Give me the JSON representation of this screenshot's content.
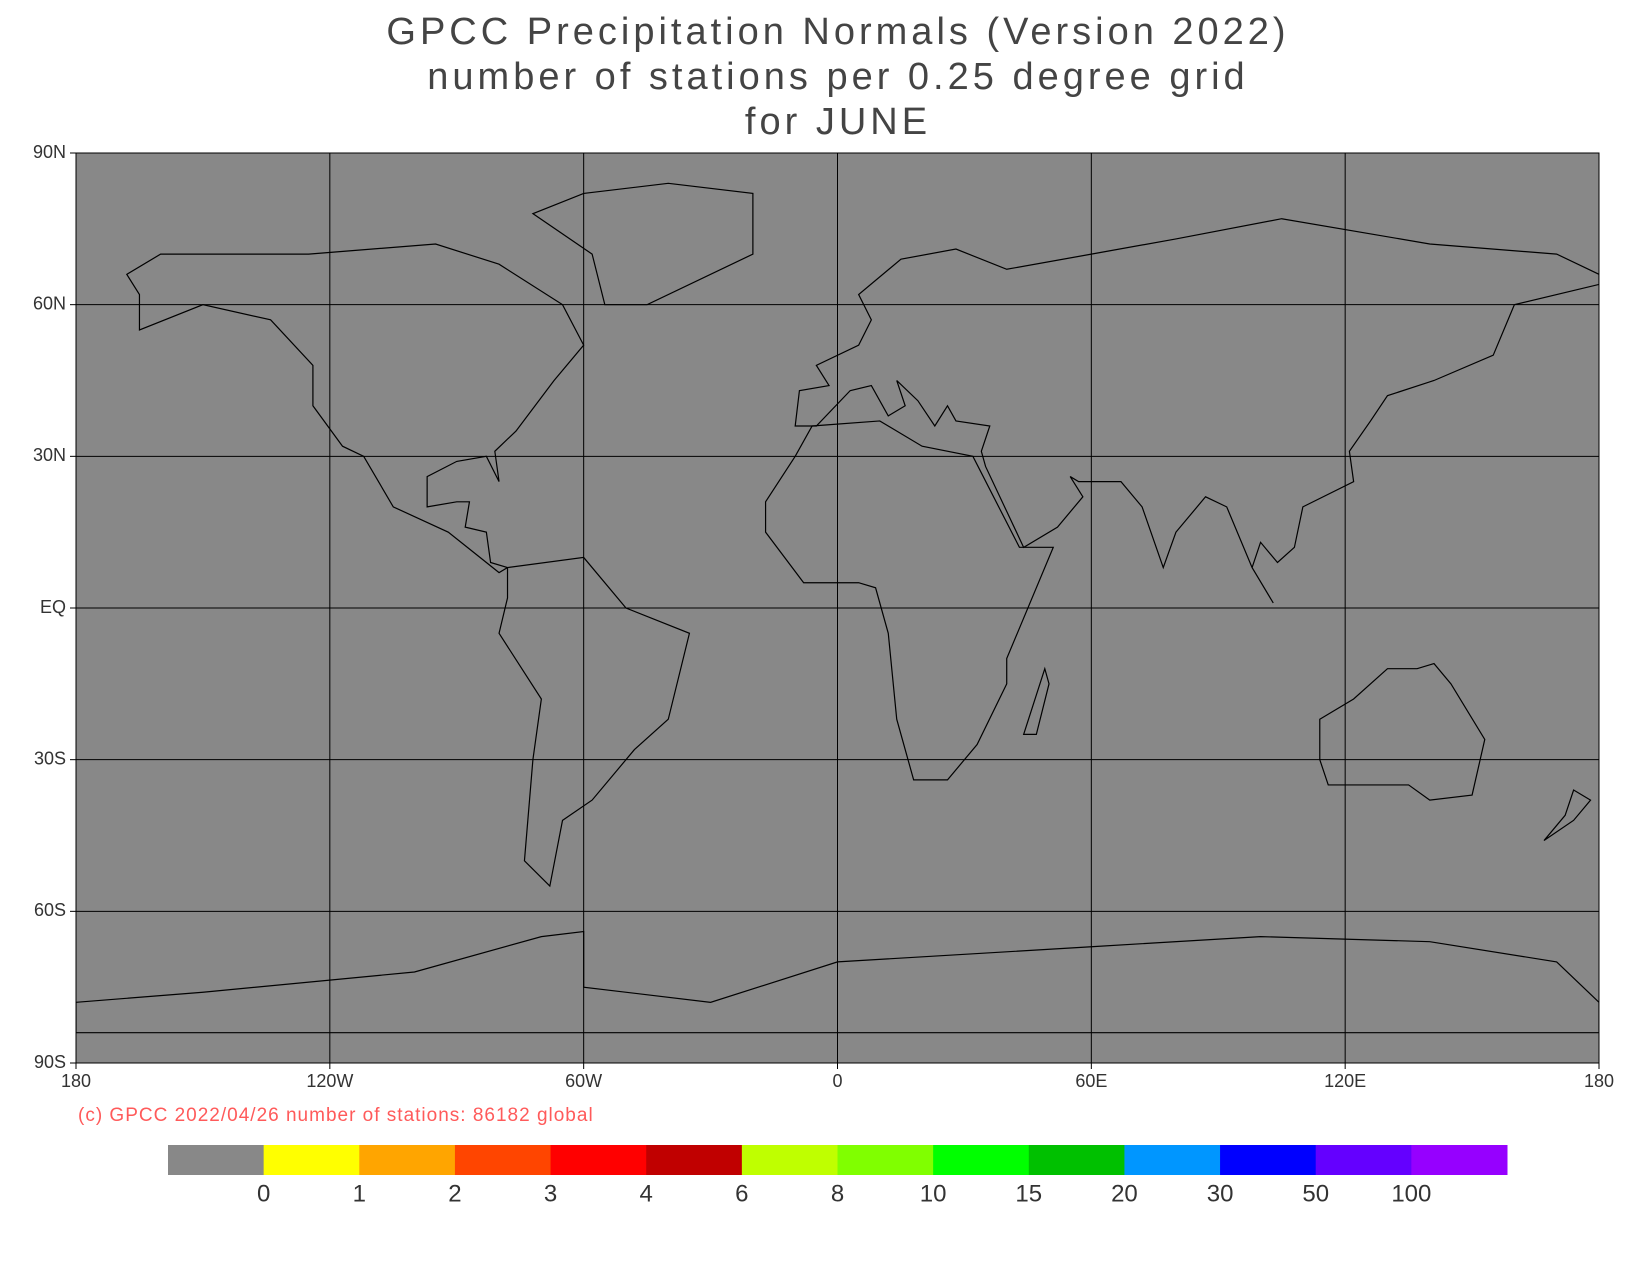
{
  "header": {
    "title_lines": [
      "GPCC Precipitation Normals (Version 2022)",
      "number of stations per 0.25 degree grid",
      "for JUNE"
    ]
  },
  "map": {
    "lon_ticks": [
      {
        "value": -180,
        "label": "180"
      },
      {
        "value": -120,
        "label": "120W"
      },
      {
        "value": -60,
        "label": "60W"
      },
      {
        "value": 0,
        "label": "0"
      },
      {
        "value": 60,
        "label": "60E"
      },
      {
        "value": 120,
        "label": "120E"
      },
      {
        "value": 180,
        "label": "180"
      }
    ],
    "lat_ticks": [
      {
        "value": 90,
        "label": "90N"
      },
      {
        "value": 60,
        "label": "60N"
      },
      {
        "value": 30,
        "label": "30N"
      },
      {
        "value": 0,
        "label": "EQ"
      },
      {
        "value": -30,
        "label": "30S"
      },
      {
        "value": -60,
        "label": "60S"
      },
      {
        "value": -90,
        "label": "90S"
      }
    ],
    "background": "#888888"
  },
  "footer": {
    "credit": "(c) GPCC 2022/04/26 number of stations: 86182 global"
  },
  "colorbar": {
    "colors": [
      "#888888",
      "#ffff00",
      "#ffa500",
      "#ff4500",
      "#ff0000",
      "#c00000",
      "#bfff00",
      "#80ff00",
      "#00ff00",
      "#00c000",
      "#0096ff",
      "#0000ff",
      "#6400ff",
      "#9600ff"
    ],
    "bounds": [
      0,
      1,
      2,
      3,
      4,
      6,
      8,
      10,
      15,
      20,
      30,
      50,
      100
    ]
  }
}
